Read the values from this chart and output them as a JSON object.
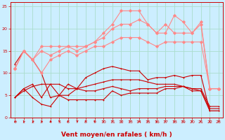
{
  "title": "",
  "xlabel": "Vent moyen/en rafales ( km/h )",
  "ylabel": "",
  "bg_color": "#cceeff",
  "grid_color": "#aaddcc",
  "x": [
    0,
    1,
    2,
    3,
    4,
    5,
    6,
    7,
    8,
    9,
    10,
    11,
    12,
    13,
    14,
    15,
    16,
    17,
    18,
    19,
    20,
    21,
    22,
    23
  ],
  "series": [
    {
      "y": [
        12,
        15,
        13,
        10,
        4.5,
        5,
        5,
        6.5,
        9,
        10,
        11,
        11.5,
        11,
        10.5,
        10.5,
        8.5,
        9,
        9,
        9.5,
        9,
        9.5,
        9.5,
        1.5,
        1.5
      ],
      "color": "#cc0000",
      "lw": 0.8,
      "marker": "+"
    },
    {
      "y": [
        4.5,
        6.5,
        7.5,
        4.5,
        7.5,
        5,
        7.5,
        6.5,
        6,
        6,
        6.5,
        7,
        6.5,
        6,
        6.5,
        6.5,
        6.5,
        7,
        7,
        7,
        6.5,
        6,
        1.5,
        1.5
      ],
      "color": "#cc0000",
      "lw": 0.8,
      "marker": "+"
    },
    {
      "y": [
        4.5,
        6.5,
        4.5,
        3,
        2.5,
        5,
        4,
        4,
        4,
        4,
        4,
        6,
        5,
        5.5,
        5.5,
        5.5,
        5.5,
        6.5,
        6.5,
        7,
        6,
        6,
        2,
        2
      ],
      "color": "#cc0000",
      "lw": 0.8,
      "marker": "+"
    },
    {
      "y": [
        4.5,
        6,
        7,
        7.5,
        7.5,
        7.5,
        6.5,
        6.5,
        7,
        7.5,
        8,
        8.5,
        8.5,
        8.5,
        8.5,
        8,
        7.5,
        7.5,
        7.5,
        7,
        6.5,
        6.5,
        2.5,
        2.5
      ],
      "color": "#cc0000",
      "lw": 0.8,
      "marker": "+"
    },
    {
      "y": [
        11,
        15,
        13,
        15,
        14,
        15,
        16,
        15,
        16,
        17,
        18,
        20,
        21,
        21,
        22,
        21,
        19,
        21,
        19,
        19,
        19,
        21,
        6.5,
        6.5
      ],
      "color": "#ff8888",
      "lw": 0.8,
      "marker": "D"
    },
    {
      "y": [
        11,
        15,
        13,
        16,
        16,
        16,
        16,
        16,
        16,
        17,
        19,
        21,
        24,
        24,
        24,
        21,
        19,
        19,
        23,
        21.5,
        19,
        21.5,
        6.5,
        6.5
      ],
      "color": "#ff8888",
      "lw": 0.8,
      "marker": "D"
    },
    {
      "y": [
        11,
        15,
        13,
        10,
        13,
        14,
        15,
        14,
        15,
        16,
        16,
        17,
        18,
        18,
        18,
        17,
        16,
        17,
        17,
        17,
        17,
        17,
        6.5,
        6.5
      ],
      "color": "#ff8888",
      "lw": 0.8,
      "marker": "D"
    }
  ],
  "xlim": [
    -0.5,
    23.5
  ],
  "ylim": [
    0,
    26
  ],
  "xticks": [
    0,
    1,
    2,
    3,
    4,
    5,
    6,
    7,
    8,
    9,
    10,
    11,
    12,
    13,
    14,
    15,
    16,
    17,
    18,
    19,
    20,
    21,
    22,
    23
  ],
  "yticks": [
    0,
    5,
    10,
    15,
    20,
    25
  ],
  "tick_color": "#cc0000",
  "tick_fontsize": 4.5,
  "xlabel_fontsize": 6.5,
  "xlabel_color": "#cc0000"
}
